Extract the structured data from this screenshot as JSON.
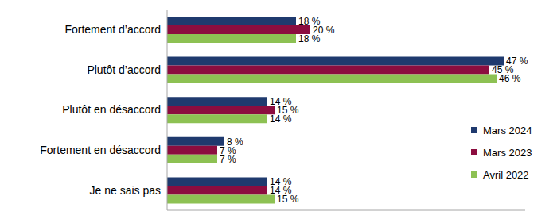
{
  "chart_data": {
    "type": "bar",
    "orientation": "horizontal",
    "categories": [
      "Fortement d’accord",
      "Plutôt d’accord",
      "Plutôt en désaccord",
      "Fortement en désaccord",
      "Je ne sais pas"
    ],
    "series": [
      {
        "name": "Mars 2024",
        "color": "#1f3a6e",
        "values": [
          18,
          47,
          14,
          8,
          14
        ],
        "value_labels": [
          "18 %",
          "47 %",
          "14 %",
          "8 %",
          "14 %"
        ]
      },
      {
        "name": "Mars 2023",
        "color": "#8c0d3f",
        "values": [
          20,
          45,
          15,
          7,
          14
        ],
        "value_labels": [
          "20 %",
          "45 %",
          "15 %",
          "7 %",
          "14 %"
        ]
      },
      {
        "name": "Avril 2022",
        "color": "#8dc153",
        "values": [
          18,
          46,
          14,
          7,
          15
        ],
        "value_labels": [
          "18 %",
          "46 %",
          "14 %",
          "7 %",
          "15 %"
        ]
      }
    ],
    "xlim": [
      0,
      50
    ],
    "data_labels": true,
    "tick_labels": "y",
    "legend": "right",
    "grid": false
  }
}
